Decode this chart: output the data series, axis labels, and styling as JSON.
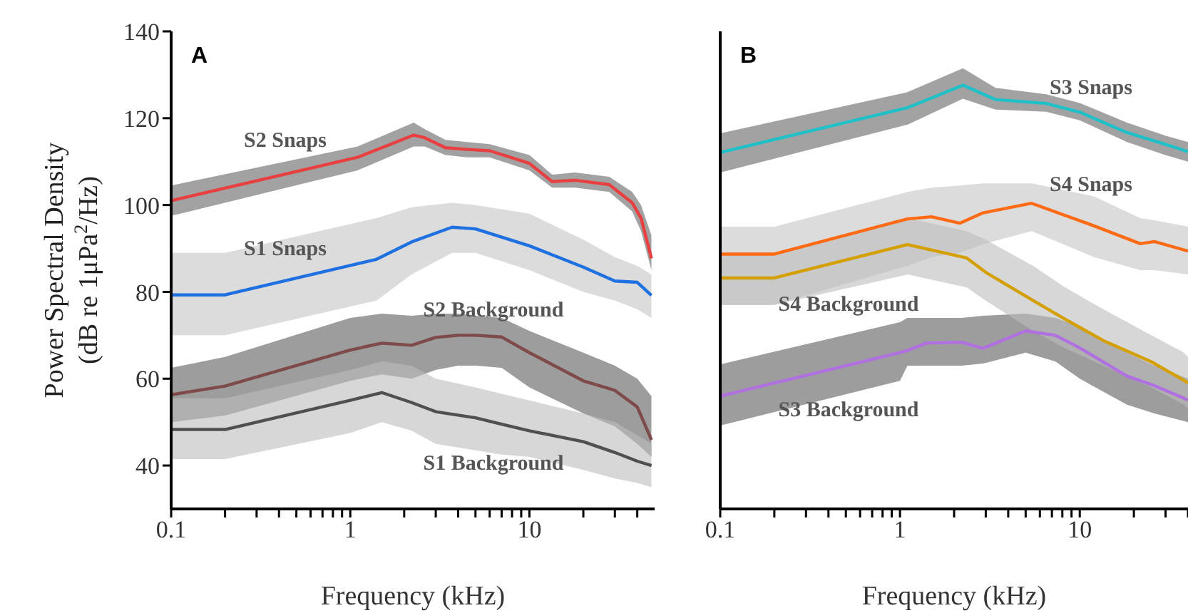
{
  "chart_data": [
    {
      "type": "line",
      "title": "A",
      "xlabel": "Frequency (kHz)",
      "ylabel": "Power Spectral Density (dB re 1μPa$^{2}$/Hz)",
      "log": "x",
      "xlim": [
        0.1,
        50
      ],
      "ylim": [
        30,
        140
      ],
      "yticks": [
        40,
        60,
        80,
        100,
        120,
        140
      ],
      "xticks": [
        0.1,
        {
          "value": 0.2,
          "label": null
        },
        {
          "value": 0.3,
          "label": null
        },
        {
          "value": 0.4,
          "label": null
        },
        {
          "value": 0.5,
          "label": null
        },
        {
          "value": 0.6,
          "label": null
        },
        {
          "value": 0.7,
          "label": null
        },
        {
          "value": 0.8,
          "label": null
        },
        {
          "value": 0.9,
          "label": null
        },
        1,
        {
          "value": 2,
          "label": null
        },
        {
          "value": 3,
          "label": null
        },
        {
          "value": 4,
          "label": null
        },
        {
          "value": 5,
          "label": null
        },
        {
          "value": 6,
          "label": null
        },
        {
          "value": 7,
          "label": null
        },
        {
          "value": 8,
          "label": null
        },
        {
          "value": 9,
          "label": null
        },
        10,
        {
          "value": 20,
          "label": null
        },
        {
          "value": 30,
          "label": null
        },
        {
          "value": 40,
          "label": null
        }
      ],
      "series": [
        {
          "name": "S2 Snaps",
          "color": "#e84040",
          "x": [
            0.1,
            1.1,
            2.26,
            2.6,
            3.4,
            4.5,
            6,
            10,
            13.4,
            18,
            27.9,
            37.5,
            42,
            48
          ],
          "values": [
            101,
            111,
            116.1,
            115.5,
            113.2,
            112.8,
            112.5,
            109.6,
            105.4,
            105.7,
            104.7,
            100.5,
            97,
            87.7
          ],
          "upper": [
            104.5,
            113.5,
            119,
            117.5,
            115,
            114.5,
            114,
            111.5,
            107,
            107.5,
            106.5,
            103,
            100,
            93
          ],
          "lower": [
            97.5,
            108,
            113.5,
            113.5,
            111.5,
            111,
            111,
            108,
            104,
            104,
            103,
            98.5,
            94,
            85
          ]
        },
        {
          "name": "S1 Snaps",
          "color": "#1f70e0",
          "x": [
            0.1,
            0.2,
            1.4,
            2.2,
            3.7,
            5,
            10,
            20,
            30,
            40,
            48
          ],
          "values": [
            79.3,
            79.3,
            87.5,
            91.5,
            94.9,
            94.5,
            90.6,
            85.7,
            82.5,
            82.2,
            79.2
          ],
          "upper": [
            89,
            89,
            97,
            99.5,
            100.5,
            100,
            98,
            92,
            88,
            86,
            84
          ],
          "lower": [
            70,
            70,
            78,
            84,
            89,
            89,
            85,
            80,
            78,
            76,
            74
          ]
        },
        {
          "name": "S2 Background",
          "color": "#7f4a4a",
          "x": [
            0.1,
            0.2,
            1,
            1.5,
            2.2,
            3,
            4,
            5,
            7,
            10,
            20,
            30,
            40,
            48
          ],
          "values": [
            56.3,
            58.3,
            66.6,
            68.2,
            67.7,
            69.5,
            70,
            70,
            69.6,
            66,
            59.5,
            57.3,
            53.5,
            45.9
          ],
          "upper": [
            62.5,
            65,
            74,
            75,
            74.5,
            75,
            75,
            74.5,
            74,
            71,
            66,
            63,
            60,
            56
          ],
          "lower": [
            50,
            51.5,
            59.5,
            61,
            60,
            62,
            63,
            63,
            62.5,
            58,
            52,
            49,
            45,
            42
          ]
        },
        {
          "name": "S1 Background",
          "color": "#505050",
          "x": [
            0.1,
            0.2,
            1,
            1.5,
            2.2,
            3,
            5,
            7,
            10,
            20,
            30,
            40,
            48
          ],
          "values": [
            48.3,
            48.3,
            55,
            56.8,
            54.5,
            52.4,
            51,
            49.5,
            48,
            45.5,
            43,
            41,
            40
          ],
          "upper": [
            55.5,
            55.5,
            62,
            64,
            63,
            60,
            58,
            56.5,
            55,
            52,
            50,
            47,
            45
          ],
          "lower": [
            41.5,
            41.5,
            47.5,
            50,
            48,
            45,
            43.5,
            42.5,
            42,
            39,
            37,
            36,
            35
          ]
        }
      ]
    },
    {
      "type": "line",
      "title": "B",
      "xlabel": "Frequency (kHz)",
      "log": "x",
      "xlim": [
        0.1,
        40
      ],
      "ylim": [
        30,
        140
      ],
      "yticks": [
        40,
        60,
        80,
        100,
        120,
        140
      ],
      "tick_labels": "x",
      "xticks": [
        0.1,
        {
          "value": 0.2,
          "label": null
        },
        {
          "value": 0.3,
          "label": null
        },
        {
          "value": 0.4,
          "label": null
        },
        {
          "value": 0.5,
          "label": null
        },
        {
          "value": 0.6,
          "label": null
        },
        {
          "value": 0.7,
          "label": null
        },
        {
          "value": 0.8,
          "label": null
        },
        {
          "value": 0.9,
          "label": null
        },
        1,
        {
          "value": 2,
          "label": null
        },
        {
          "value": 3,
          "label": null
        },
        {
          "value": 4,
          "label": null
        },
        {
          "value": 5,
          "label": null
        },
        {
          "value": 6,
          "label": null
        },
        {
          "value": 7,
          "label": null
        },
        {
          "value": 8,
          "label": null
        },
        {
          "value": 9,
          "label": null
        },
        10,
        {
          "value": 20,
          "label": null
        },
        {
          "value": 30,
          "label": null
        },
        {
          "value": 40,
          "label": null
        }
      ],
      "series": [
        {
          "name": "S3 Snaps",
          "color": "#20c0c8",
          "x": [
            0.1,
            1.1,
            2.24,
            3.4,
            6.5,
            10,
            18.3,
            29.9,
            40
          ],
          "values": [
            112.1,
            122.4,
            127.6,
            124.3,
            123.4,
            121.4,
            116.7,
            114,
            112.3
          ],
          "upper": [
            116.5,
            126,
            131.5,
            127,
            125.5,
            123.5,
            119,
            116,
            114.5
          ],
          "lower": [
            107.5,
            118.5,
            124.5,
            122,
            121.5,
            119.5,
            114.5,
            111.5,
            110
          ]
        },
        {
          "name": "S4 Snaps",
          "color": "#ff6a14",
          "x": [
            0.1,
            0.2,
            1.1,
            1.5,
            2.15,
            2.9,
            5.4,
            12,
            21.7,
            26,
            40
          ],
          "values": [
            88.7,
            88.7,
            96.8,
            97.3,
            95.8,
            98.2,
            100.4,
            95.2,
            91.1,
            91.6,
            89.4
          ],
          "upper": [
            95,
            95,
            103,
            104,
            104.5,
            105,
            105,
            102,
            97,
            96.5,
            95
          ],
          "lower": [
            77,
            77,
            86,
            88,
            89,
            91,
            94,
            88,
            85,
            85,
            84
          ]
        },
        {
          "name": "S3 Background",
          "color": "#b070e0",
          "x": [
            0.1,
            1,
            1.1,
            1.4,
            2.2,
            2.9,
            5,
            7.3,
            10,
            18.3,
            26,
            40
          ],
          "values": [
            56,
            66,
            66.5,
            68.2,
            68.4,
            67,
            71,
            70,
            67.1,
            60.6,
            58.4,
            55.1
          ],
          "upper": [
            63.3,
            73,
            74,
            74,
            74,
            74.5,
            75,
            74,
            72,
            66,
            63,
            60
          ],
          "lower": [
            49.2,
            59.5,
            63,
            63,
            63,
            63.5,
            66,
            64,
            60,
            54,
            52,
            50
          ]
        },
        {
          "name": "S4 Background",
          "color": "#d4a000",
          "x": [
            0.1,
            0.2,
            1.1,
            2.35,
            3,
            5.5,
            8.3,
            13.5,
            25,
            38,
            40
          ],
          "values": [
            83.2,
            83.2,
            90.9,
            87.8,
            84.5,
            78,
            73.7,
            68.8,
            63.9,
            59.6,
            59
          ],
          "upper": [
            89,
            89,
            97,
            94,
            92,
            86,
            81,
            76,
            70,
            66,
            65
          ],
          "lower": [
            77,
            77,
            84,
            81,
            78,
            71,
            67,
            63,
            58,
            54,
            53
          ]
        }
      ]
    }
  ]
}
